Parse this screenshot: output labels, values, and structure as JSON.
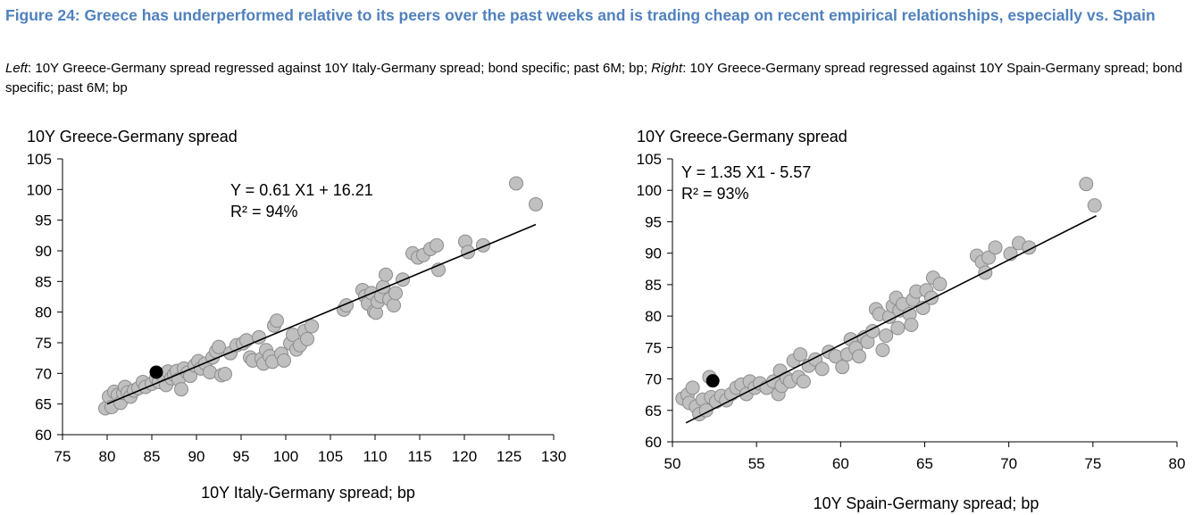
{
  "title": "Figure 24: Greece has underperformed relative to its peers over the past weeks and is trading cheap on recent empirical relationships, especially vs. Spain",
  "subtitle": {
    "left_label": "Left",
    "left_text": ": 10Y Greece-Germany spread regressed against 10Y Italy-Germany spread; bond specific; past 6M; bp; ",
    "right_label": "Right",
    "right_text": ": 10Y Greece-Germany spread regressed against 10Y Spain-Germany spread; bond specific; past 6M; bp"
  },
  "colors": {
    "title": "#4f81bd",
    "points": "#c0c0c0",
    "point_edge": "#8c8c8c",
    "latest": "#000000",
    "line": "#000000"
  },
  "chart_data": [
    {
      "type": "scatter",
      "title": "",
      "ylabel": "10Y Greece-Germany spread",
      "xlabel": "10Y Italy-Germany spread; bp",
      "xlim": [
        75,
        130
      ],
      "ylim": [
        60,
        105
      ],
      "xticks": [
        75,
        80,
        85,
        90,
        95,
        100,
        105,
        110,
        115,
        120,
        125,
        130
      ],
      "yticks": [
        60,
        65,
        70,
        75,
        80,
        85,
        90,
        95,
        100,
        105
      ],
      "equation": "Y = 0.61 X1 + 16.21",
      "r2": "R² = 94%",
      "regression": {
        "slope": 0.61,
        "intercept": 16.21,
        "x_range": [
          80,
          128
        ]
      },
      "latest_point": [
        85.5,
        70.2
      ],
      "series": [
        {
          "name": "Observations",
          "points": [
            [
              79.8,
              64.3
            ],
            [
              80.2,
              66.2
            ],
            [
              80.5,
              64.5
            ],
            [
              80.8,
              67.0
            ],
            [
              81.2,
              66.5
            ],
            [
              81.5,
              65.2
            ],
            [
              81.8,
              66.8
            ],
            [
              82.0,
              67.8
            ],
            [
              82.3,
              66.9
            ],
            [
              82.6,
              66.2
            ],
            [
              83.0,
              67.2
            ],
            [
              83.5,
              67.6
            ],
            [
              84.0,
              68.6
            ],
            [
              84.3,
              67.8
            ],
            [
              85.0,
              68.3
            ],
            [
              85.5,
              69.2
            ],
            [
              85.8,
              68.6
            ],
            [
              86.3,
              69.5
            ],
            [
              86.6,
              68.1
            ],
            [
              86.8,
              70.3
            ],
            [
              87.2,
              69.2
            ],
            [
              87.5,
              69.8
            ],
            [
              87.8,
              70.4
            ],
            [
              88.0,
              69.0
            ],
            [
              88.3,
              67.4
            ],
            [
              88.6,
              70.8
            ],
            [
              89.0,
              70.1
            ],
            [
              89.3,
              69.6
            ],
            [
              89.8,
              71.3
            ],
            [
              90.2,
              72.0
            ],
            [
              90.5,
              70.8
            ],
            [
              91.0,
              71.6
            ],
            [
              91.5,
              70.2
            ],
            [
              91.8,
              72.6
            ],
            [
              92.2,
              73.6
            ],
            [
              92.5,
              74.3
            ],
            [
              92.8,
              69.7
            ],
            [
              93.2,
              69.9
            ],
            [
              93.8,
              73.3
            ],
            [
              94.5,
              74.6
            ],
            [
              95.2,
              74.9
            ],
            [
              95.6,
              75.4
            ],
            [
              96.0,
              72.6
            ],
            [
              96.3,
              72.1
            ],
            [
              97.0,
              75.9
            ],
            [
              97.3,
              72.4
            ],
            [
              97.5,
              71.6
            ],
            [
              97.8,
              73.8
            ],
            [
              98.2,
              72.8
            ],
            [
              98.5,
              71.9
            ],
            [
              98.7,
              77.8
            ],
            [
              99.0,
              78.6
            ],
            [
              99.5,
              73.2
            ],
            [
              99.8,
              72.1
            ],
            [
              100.5,
              74.9
            ],
            [
              100.8,
              76.3
            ],
            [
              101.2,
              73.9
            ],
            [
              101.6,
              74.6
            ],
            [
              102.1,
              76.9
            ],
            [
              102.4,
              75.6
            ],
            [
              102.9,
              77.7
            ],
            [
              106.5,
              80.4
            ],
            [
              106.8,
              81.1
            ],
            [
              108.6,
              83.6
            ],
            [
              108.9,
              82.6
            ],
            [
              109.2,
              81.4
            ],
            [
              109.6,
              83.1
            ],
            [
              109.9,
              80.1
            ],
            [
              110.1,
              79.9
            ],
            [
              110.3,
              81.7
            ],
            [
              110.7,
              82.6
            ],
            [
              110.9,
              84.1
            ],
            [
              111.2,
              86.1
            ],
            [
              111.6,
              82.1
            ],
            [
              112.1,
              81.1
            ],
            [
              112.3,
              83.1
            ],
            [
              113.1,
              85.3
            ],
            [
              114.2,
              89.6
            ],
            [
              114.8,
              88.9
            ],
            [
              115.4,
              89.3
            ],
            [
              116.2,
              90.3
            ],
            [
              116.9,
              90.9
            ],
            [
              117.1,
              86.9
            ],
            [
              120.1,
              91.5
            ],
            [
              120.4,
              89.8
            ],
            [
              122.1,
              90.9
            ],
            [
              125.8,
              101.0
            ],
            [
              128.0,
              97.6
            ]
          ]
        }
      ]
    },
    {
      "type": "scatter",
      "title": "",
      "ylabel": "10Y Greece-Germany spread",
      "xlabel": "10Y Spain-Germany spread; bp",
      "xlim": [
        50,
        80
      ],
      "ylim": [
        60,
        105
      ],
      "xticks": [
        50,
        55,
        60,
        65,
        70,
        75,
        80
      ],
      "yticks": [
        60,
        65,
        70,
        75,
        80,
        85,
        90,
        95,
        100,
        105
      ],
      "equation": "Y = 1.35 X1 - 5.57",
      "r2": "R² = 93%",
      "regression": {
        "slope": 1.35,
        "intercept": -5.57,
        "x_range": [
          50.8,
          75.2
        ]
      },
      "latest_point": [
        52.4,
        69.7
      ],
      "series": [
        {
          "name": "Observations",
          "points": [
            [
              50.6,
              66.9
            ],
            [
              50.9,
              67.5
            ],
            [
              51.0,
              66.2
            ],
            [
              51.2,
              68.6
            ],
            [
              51.4,
              65.6
            ],
            [
              51.6,
              64.4
            ],
            [
              51.8,
              66.7
            ],
            [
              52.0,
              65.0
            ],
            [
              52.2,
              70.3
            ],
            [
              52.3,
              67.1
            ],
            [
              52.6,
              66.4
            ],
            [
              52.9,
              67.3
            ],
            [
              53.2,
              66.6
            ],
            [
              53.5,
              67.6
            ],
            [
              53.8,
              68.6
            ],
            [
              54.1,
              69.1
            ],
            [
              54.4,
              67.6
            ],
            [
              54.6,
              69.6
            ],
            [
              54.9,
              68.6
            ],
            [
              55.2,
              69.3
            ],
            [
              55.6,
              68.6
            ],
            [
              56.0,
              69.6
            ],
            [
              56.3,
              67.6
            ],
            [
              56.4,
              71.3
            ],
            [
              56.5,
              68.9
            ],
            [
              56.8,
              70.1
            ],
            [
              57.0,
              69.6
            ],
            [
              57.2,
              72.9
            ],
            [
              57.5,
              70.3
            ],
            [
              57.6,
              73.9
            ],
            [
              57.8,
              69.6
            ],
            [
              58.1,
              72.1
            ],
            [
              58.5,
              73.1
            ],
            [
              58.9,
              71.6
            ],
            [
              59.3,
              74.3
            ],
            [
              59.7,
              73.6
            ],
            [
              60.1,
              71.9
            ],
            [
              60.4,
              73.9
            ],
            [
              60.6,
              76.3
            ],
            [
              60.9,
              74.9
            ],
            [
              61.1,
              73.6
            ],
            [
              61.4,
              76.6
            ],
            [
              61.6,
              75.9
            ],
            [
              61.9,
              77.6
            ],
            [
              62.1,
              81.1
            ],
            [
              62.3,
              80.3
            ],
            [
              62.5,
              74.6
            ],
            [
              62.7,
              76.9
            ],
            [
              62.9,
              79.9
            ],
            [
              63.1,
              81.6
            ],
            [
              63.3,
              82.9
            ],
            [
              63.4,
              78.1
            ],
            [
              63.5,
              80.9
            ],
            [
              63.7,
              81.9
            ],
            [
              64.1,
              80.3
            ],
            [
              64.2,
              78.6
            ],
            [
              64.3,
              82.6
            ],
            [
              64.5,
              83.9
            ],
            [
              64.9,
              81.3
            ],
            [
              65.1,
              84.1
            ],
            [
              65.4,
              82.9
            ],
            [
              65.5,
              86.1
            ],
            [
              65.9,
              85.1
            ],
            [
              68.1,
              89.6
            ],
            [
              68.4,
              88.6
            ],
            [
              68.6,
              86.9
            ],
            [
              68.8,
              89.3
            ],
            [
              69.2,
              90.9
            ],
            [
              70.1,
              89.9
            ],
            [
              70.6,
              91.6
            ],
            [
              71.2,
              90.9
            ],
            [
              74.6,
              101.0
            ],
            [
              75.1,
              97.6
            ]
          ]
        }
      ]
    }
  ]
}
